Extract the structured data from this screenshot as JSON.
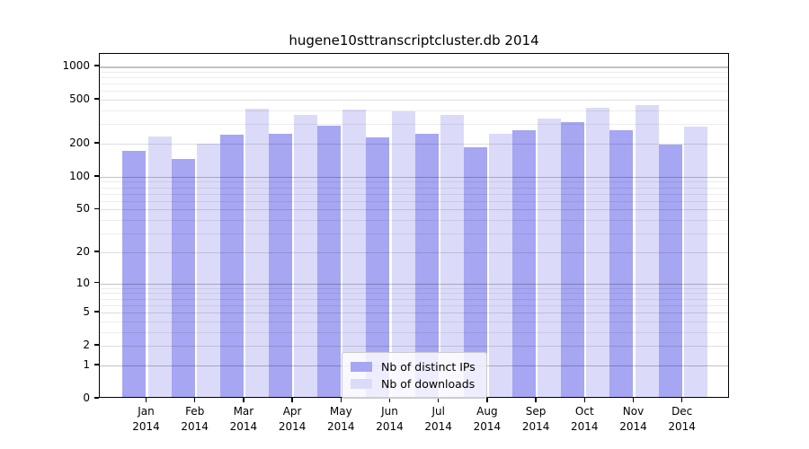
{
  "chart_data": {
    "type": "bar",
    "title": "hugene10sttranscriptcluster.db 2014",
    "categories": [
      "Jan 2014",
      "Feb 2014",
      "Mar 2014",
      "Apr 2014",
      "May 2014",
      "Jun 2014",
      "Jul 2014",
      "Aug 2014",
      "Sep 2014",
      "Oct 2014",
      "Nov 2014",
      "Dec 2014"
    ],
    "series": [
      {
        "name": "Nb of distinct IPs",
        "color": "#a6a6f2",
        "values": [
          167,
          140,
          232,
          236,
          280,
          220,
          236,
          178,
          255,
          305,
          253,
          190
        ]
      },
      {
        "name": "Nb of downloads",
        "color": "#dbdbf9",
        "values": [
          222,
          191,
          400,
          354,
          390,
          375,
          348,
          235,
          323,
          407,
          434,
          274
        ]
      }
    ],
    "xlabel": "",
    "ylabel": "",
    "yscale": "log1p",
    "ylim": [
      0,
      1300
    ],
    "ytick_values": [
      0,
      1,
      2,
      5,
      10,
      20,
      50,
      100,
      200,
      500,
      1000
    ],
    "ytick_labels": [
      "0",
      "1",
      "2",
      "5",
      "10",
      "20",
      "50",
      "100",
      "200",
      "500",
      "1000"
    ],
    "power_gridlines": [
      1,
      10,
      100,
      1000
    ],
    "labeled_gridlines": [
      2,
      5,
      20,
      50,
      200,
      500
    ],
    "minor_gridlines": [
      3,
      4,
      6,
      7,
      8,
      9,
      30,
      40,
      60,
      70,
      80,
      90,
      300,
      400,
      600,
      700,
      800,
      900
    ],
    "grid": true,
    "legend_position": "lower-center-inside",
    "background_color": "#ffffff",
    "spine_color": "#000000"
  }
}
